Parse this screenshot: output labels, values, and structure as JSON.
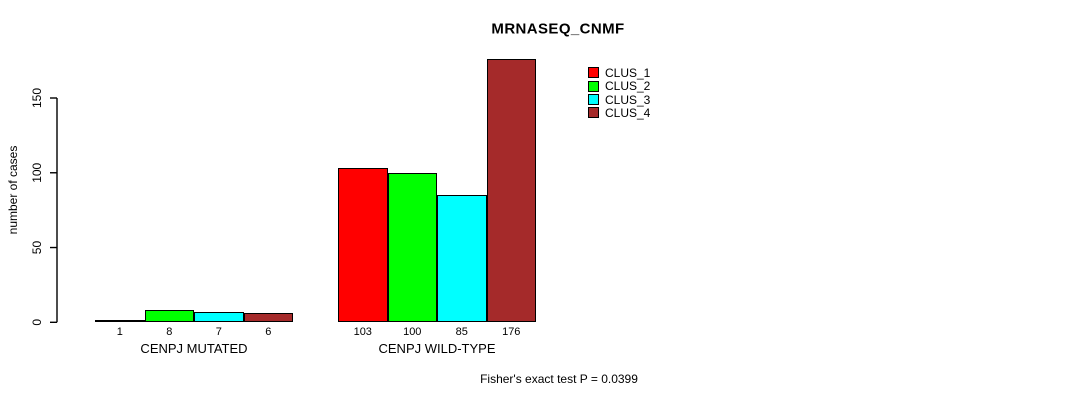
{
  "figure": {
    "background": "#ffffff",
    "axis_color": "#000000",
    "bar_border_color": "#000000"
  },
  "chart_data": {
    "type": "bar",
    "title": "MRNASEQ_CNMF",
    "ylabel": "number of cases",
    "xlabel": "",
    "groups": [
      "CENPJ MUTATED",
      "CENPJ WILD-TYPE"
    ],
    "series": [
      {
        "name": "CLUS_1",
        "color": "#ff0000",
        "values": [
          1,
          103
        ]
      },
      {
        "name": "CLUS_2",
        "color": "#00ff00",
        "values": [
          8,
          100
        ]
      },
      {
        "name": "CLUS_3",
        "color": "#00ffff",
        "values": [
          7,
          85
        ]
      },
      {
        "name": "CLUS_4",
        "color": "#a52a2a",
        "values": [
          6,
          176
        ]
      }
    ],
    "bar_value_labels": [
      [
        "1",
        "8",
        "7",
        "6"
      ],
      [
        "103",
        "100",
        "85",
        "176"
      ]
    ],
    "yticks": [
      0,
      50,
      100,
      150
    ],
    "ylim": [
      0,
      176
    ],
    "grid": false,
    "legend_position": "top-right",
    "legend": [
      "CLUS_1",
      "CLUS_2",
      "CLUS_3",
      "CLUS_4"
    ],
    "annotation": "Fisher's exact test P = 0.0399"
  }
}
